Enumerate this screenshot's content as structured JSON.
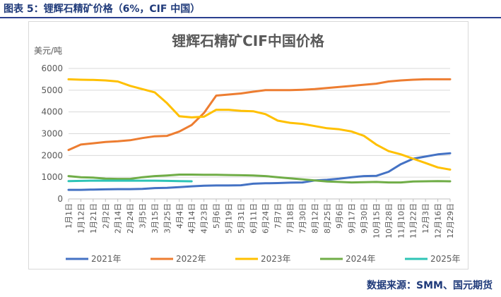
{
  "caption": "图表 5：锂辉石精矿价格（6%，CIF 中国）",
  "source": "数据来源：SMM、国元期货",
  "chart_data": {
    "type": "line",
    "title": "锂辉石精矿CIF中国价格",
    "ylabel": "美元/吨",
    "xlabel": "",
    "ylim": [
      0,
      6000
    ],
    "yticks": [
      0,
      1000,
      2000,
      3000,
      4000,
      5000,
      6000
    ],
    "grid": true,
    "legend_position": "bottom",
    "categories": [
      "1月1日",
      "1月12日",
      "1月21日",
      "2月2日",
      "2月14日",
      "2月24日",
      "3月5日",
      "3月15日",
      "3月25日",
      "4月4日",
      "4月14日",
      "4月23日",
      "5月6日",
      "5月19日",
      "5月31日",
      "6月11日",
      "6月24日",
      "7月7日",
      "7月18日",
      "7月30日",
      "8月12日",
      "8月25日",
      "9月6日",
      "9月17日",
      "9月30日",
      "10月15日",
      "10月28日",
      "11月10日",
      "11月22日",
      "12月3日",
      "12月16日",
      "12月29日"
    ],
    "series": [
      {
        "name": "2021年",
        "color": "#4472c4",
        "x": [
          0,
          1,
          2,
          3,
          4,
          5,
          6,
          7,
          8,
          9,
          10,
          11,
          12,
          13,
          14,
          15,
          16,
          17,
          18,
          19,
          20,
          21,
          22,
          23,
          24,
          25,
          26,
          27,
          28,
          29,
          30,
          31
        ],
        "values": [
          420,
          420,
          430,
          440,
          450,
          450,
          460,
          500,
          510,
          540,
          580,
          610,
          620,
          620,
          630,
          700,
          720,
          730,
          750,
          760,
          850,
          880,
          930,
          1000,
          1050,
          1060,
          1250,
          1600,
          1850,
          1950,
          2050,
          2100
        ]
      },
      {
        "name": "2022年",
        "color": "#ed7d31",
        "x": [
          0,
          1,
          2,
          3,
          4,
          5,
          6,
          7,
          8,
          9,
          10,
          11,
          12,
          13,
          14,
          15,
          16,
          17,
          18,
          19,
          20,
          21,
          22,
          23,
          24,
          25,
          26,
          27,
          28,
          29,
          30,
          31
        ],
        "values": [
          2250,
          2500,
          2560,
          2620,
          2650,
          2700,
          2800,
          2880,
          2900,
          3100,
          3400,
          3950,
          4750,
          4800,
          4850,
          4930,
          5000,
          5000,
          5000,
          5020,
          5050,
          5100,
          5150,
          5200,
          5250,
          5300,
          5400,
          5450,
          5480,
          5500,
          5500,
          5500
        ]
      },
      {
        "name": "2023年",
        "color": "#ffc000",
        "x": [
          0,
          1,
          2,
          3,
          4,
          5,
          6,
          7,
          8,
          9,
          10,
          11,
          12,
          13,
          14,
          15,
          16,
          17,
          18,
          19,
          20,
          21,
          22,
          23,
          24,
          25,
          26,
          27,
          28,
          29,
          30,
          31
        ],
        "values": [
          5500,
          5480,
          5470,
          5450,
          5400,
          5200,
          5050,
          4900,
          4400,
          3800,
          3750,
          3780,
          4100,
          4100,
          4050,
          4030,
          3900,
          3600,
          3500,
          3450,
          3350,
          3250,
          3200,
          3100,
          2900,
          2500,
          2200,
          2050,
          1850,
          1650,
          1450,
          1350
        ]
      },
      {
        "name": "2024年",
        "color": "#70ad47",
        "x": [
          0,
          1,
          2,
          3,
          4,
          5,
          6,
          7,
          8,
          9,
          10,
          11,
          12,
          13,
          14,
          15,
          16,
          17,
          18,
          19,
          20,
          21,
          22,
          23,
          24,
          25,
          26,
          27,
          28,
          29,
          30,
          31
        ],
        "values": [
          1050,
          1000,
          980,
          930,
          920,
          920,
          1000,
          1050,
          1080,
          1120,
          1120,
          1110,
          1110,
          1100,
          1090,
          1080,
          1050,
          1000,
          950,
          900,
          850,
          800,
          780,
          760,
          770,
          780,
          760,
          760,
          800,
          810,
          820,
          810
        ]
      },
      {
        "name": "2025年",
        "color": "#2ec4b6",
        "x": [
          0,
          1,
          2,
          3,
          4,
          5,
          6,
          7,
          8,
          9,
          10
        ],
        "values": [
          820,
          830,
          840,
          840,
          840,
          840,
          840,
          840,
          830,
          820,
          810
        ]
      }
    ]
  }
}
